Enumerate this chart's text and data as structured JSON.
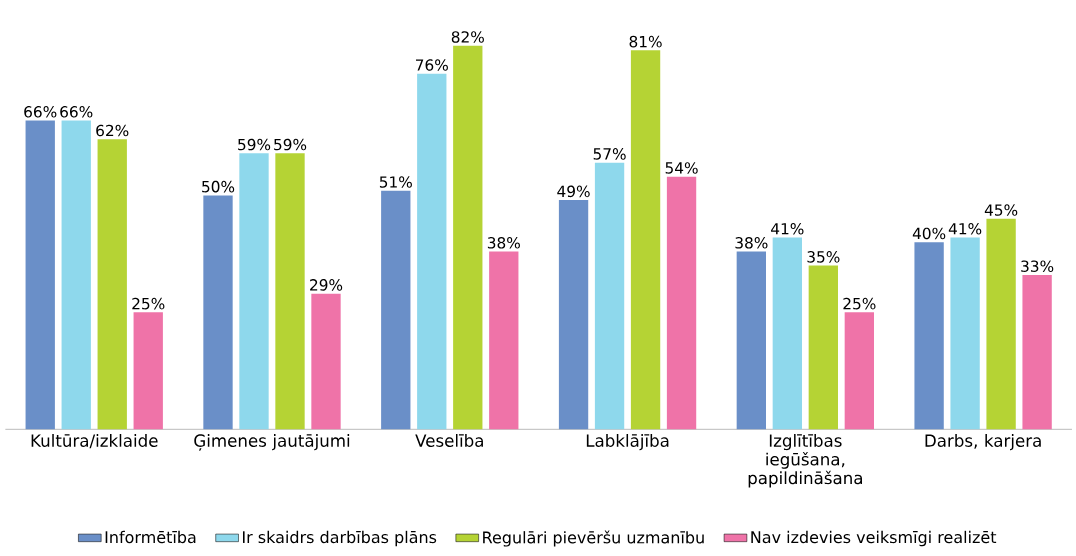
{
  "chart_data": {
    "type": "bar",
    "categories": [
      "Kultūra/izklaide",
      "Ģimenes jautājumi",
      "Veselība",
      "Labklājība",
      "Izglītības iegūšana, papildināšana",
      "Darbs, karjera"
    ],
    "series": [
      {
        "name": "Informētība",
        "color": "#6a8fc8",
        "values": [
          66,
          50,
          51,
          49,
          38,
          40
        ],
        "value_labels": [
          "66%",
          "50%",
          "51%",
          "49%",
          "38%",
          "40%"
        ]
      },
      {
        "name": "Ir skaidrs darbības plāns",
        "color": "#8ed8ec",
        "values": [
          66,
          59,
          76,
          57,
          41,
          41
        ],
        "value_labels": [
          "66%",
          "59%",
          "76%",
          "57%",
          "41%",
          "41%"
        ]
      },
      {
        "name": "Regulāri pievēršu uzmanību",
        "color": "#b5d334",
        "values": [
          62,
          59,
          82,
          81,
          35,
          45
        ],
        "value_labels": [
          "62%",
          "59%",
          "82%",
          "81%",
          "35%",
          "45%"
        ]
      },
      {
        "name": "Nav izdevies veiksmīgi realizēt",
        "color": "#ef73a8",
        "values": [
          25,
          29,
          38,
          54,
          25,
          33
        ],
        "value_labels": [
          "25%",
          "29%",
          "38%",
          "54%",
          "25%",
          "33%"
        ]
      }
    ],
    "legend": "bottom"
  }
}
